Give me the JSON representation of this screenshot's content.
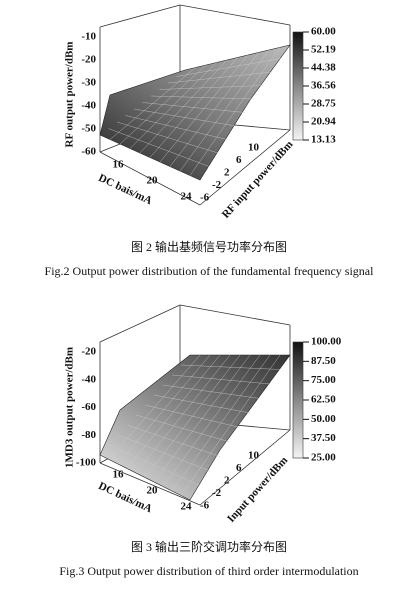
{
  "figures": [
    {
      "z_axis_label": "RF output power/dBm",
      "x_axis_label": "DC bais/mA",
      "y_axis_label": "RF input power/dBm",
      "z_ticks": [
        "-10",
        "-20",
        "-30",
        "-40",
        "-50",
        "-60"
      ],
      "x_ticks": [
        "16",
        "20",
        "24"
      ],
      "y_ticks": [
        "10",
        "6",
        "2",
        "-2",
        "-6"
      ],
      "colorbar_ticks": [
        "60.00",
        "52.19",
        "44.38",
        "36.56",
        "28.75",
        "20.94",
        "13.13"
      ],
      "caption_cn": "图 2 输出基频信号功率分布图",
      "caption_en": "Fig.2 Output power distribution of the fundamental frequency signal"
    },
    {
      "z_axis_label": "1MD3 output power/dBm",
      "x_axis_label": "DC bais/mA",
      "y_axis_label": "Input power/dBm",
      "z_ticks": [
        "-20",
        "-40",
        "-60",
        "-80",
        "-100"
      ],
      "x_ticks": [
        "16",
        "20",
        "24"
      ],
      "y_ticks": [
        "10",
        "6",
        "2",
        "-2",
        "-6"
      ],
      "colorbar_ticks": [
        "100.00",
        "87.50",
        "75.00",
        "62.50",
        "50.00",
        "37.50",
        "25.00"
      ],
      "caption_cn": "图 3 输出三阶交调功率分布图",
      "caption_en": "Fig.3 Output power distribution of third order intermodulation"
    }
  ]
}
